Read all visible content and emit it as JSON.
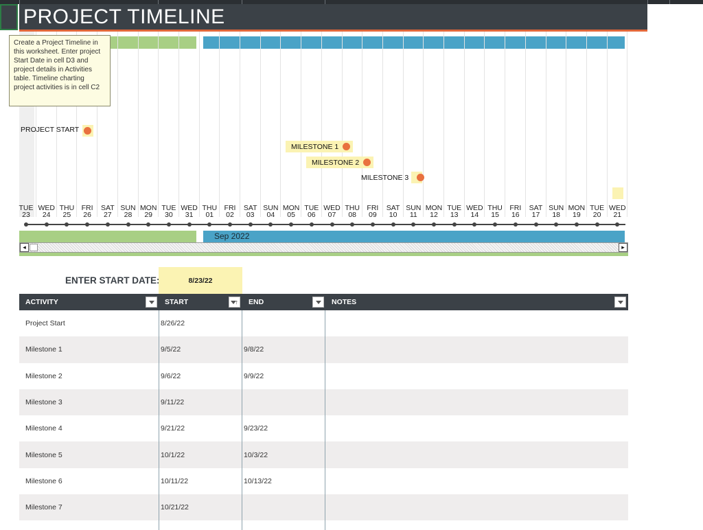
{
  "title": "PROJECT TIMELINE",
  "colors": {
    "title_bg": "#3b4147",
    "accent_underline": "#e2673a",
    "bar_green": "#a8cf84",
    "bar_blue": "#4aa3c7",
    "highlight": "#fbf3b3",
    "milestone_dot": "#e9713f"
  },
  "comment": {
    "text": "Create a Project Timeline in this worksheet. Enter project Start Date in cell D3 and project details in Activities table. Timeline charting project activities is in cell C2"
  },
  "timeline": {
    "month_label": "Sep 2022",
    "days": [
      {
        "dow": "TUE",
        "num": "23"
      },
      {
        "dow": "WED",
        "num": "24"
      },
      {
        "dow": "THU",
        "num": "25"
      },
      {
        "dow": "FRI",
        "num": "26"
      },
      {
        "dow": "SAT",
        "num": "27"
      },
      {
        "dow": "SUN",
        "num": "28"
      },
      {
        "dow": "MON",
        "num": "29"
      },
      {
        "dow": "TUE",
        "num": "30"
      },
      {
        "dow": "WED",
        "num": "31"
      },
      {
        "dow": "THU",
        "num": "01"
      },
      {
        "dow": "FRI",
        "num": "02"
      },
      {
        "dow": "SAT",
        "num": "03"
      },
      {
        "dow": "SUN",
        "num": "04"
      },
      {
        "dow": "MON",
        "num": "05"
      },
      {
        "dow": "TUE",
        "num": "06"
      },
      {
        "dow": "WED",
        "num": "07"
      },
      {
        "dow": "THU",
        "num": "08"
      },
      {
        "dow": "FRI",
        "num": "09"
      },
      {
        "dow": "SAT",
        "num": "10"
      },
      {
        "dow": "SUN",
        "num": "11"
      },
      {
        "dow": "MON",
        "num": "12"
      },
      {
        "dow": "TUE",
        "num": "13"
      },
      {
        "dow": "WED",
        "num": "14"
      },
      {
        "dow": "THU",
        "num": "15"
      },
      {
        "dow": "FRI",
        "num": "16"
      },
      {
        "dow": "SAT",
        "num": "17"
      },
      {
        "dow": "SUN",
        "num": "18"
      },
      {
        "dow": "MON",
        "num": "19"
      },
      {
        "dow": "TUE",
        "num": "20"
      },
      {
        "dow": "WED",
        "num": "21"
      }
    ],
    "markers": {
      "project_start": "PROJECT START",
      "milestone1": "MILESTONE 1",
      "milestone2": "MILESTONE 2",
      "milestone3": "MILESTONE 3"
    }
  },
  "start": {
    "label": "ENTER START DATE:",
    "value": "8/23/22"
  },
  "table": {
    "headers": {
      "activity": "ACTIVITY",
      "start": "START",
      "end": "END",
      "notes": "NOTES"
    },
    "rows": [
      {
        "activity": "Project Start",
        "start": "8/26/22",
        "end": "",
        "notes": ""
      },
      {
        "activity": "Milestone 1",
        "start": "9/5/22",
        "end": "9/8/22",
        "notes": ""
      },
      {
        "activity": "Milestone 2",
        "start": "9/6/22",
        "end": "9/9/22",
        "notes": ""
      },
      {
        "activity": "Milestone 3",
        "start": "9/11/22",
        "end": "",
        "notes": ""
      },
      {
        "activity": "Milestone 4",
        "start": "9/21/22",
        "end": "9/23/22",
        "notes": ""
      },
      {
        "activity": "Milestone 5",
        "start": "10/1/22",
        "end": "10/3/22",
        "notes": ""
      },
      {
        "activity": "Milestone 6",
        "start": "10/11/22",
        "end": "10/13/22",
        "notes": ""
      },
      {
        "activity": "Milestone 7",
        "start": "10/21/22",
        "end": "",
        "notes": ""
      }
    ]
  }
}
